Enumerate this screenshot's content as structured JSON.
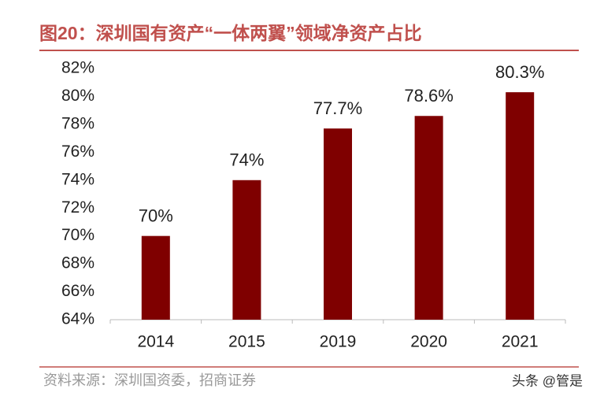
{
  "chart_data": {
    "type": "bar",
    "title": "图20：深圳国有资产“一体两翼”领域净资产占比",
    "source": "资料来源：深圳国资委，招商证券",
    "watermark": "头条 @管是",
    "categories": [
      "2014",
      "2015",
      "2019",
      "2020",
      "2021"
    ],
    "values": [
      70,
      74,
      77.7,
      78.6,
      80.3
    ],
    "value_labels": [
      "70%",
      "74%",
      "77.7%",
      "78.6%",
      "80.3%"
    ],
    "color": "#7f0000",
    "ylim": [
      64,
      82
    ],
    "yticks": [
      {
        "value": 64,
        "label": "64%"
      },
      {
        "value": 66,
        "label": "66%"
      },
      {
        "value": 68,
        "label": "68%"
      },
      {
        "value": 70,
        "label": "70%"
      },
      {
        "value": 72,
        "label": "72%"
      },
      {
        "value": 74,
        "label": "74%"
      },
      {
        "value": 76,
        "label": "76%"
      },
      {
        "value": 78,
        "label": "78%"
      },
      {
        "value": 80,
        "label": "80%"
      },
      {
        "value": 82,
        "label": "82%"
      }
    ],
    "grid": false
  }
}
